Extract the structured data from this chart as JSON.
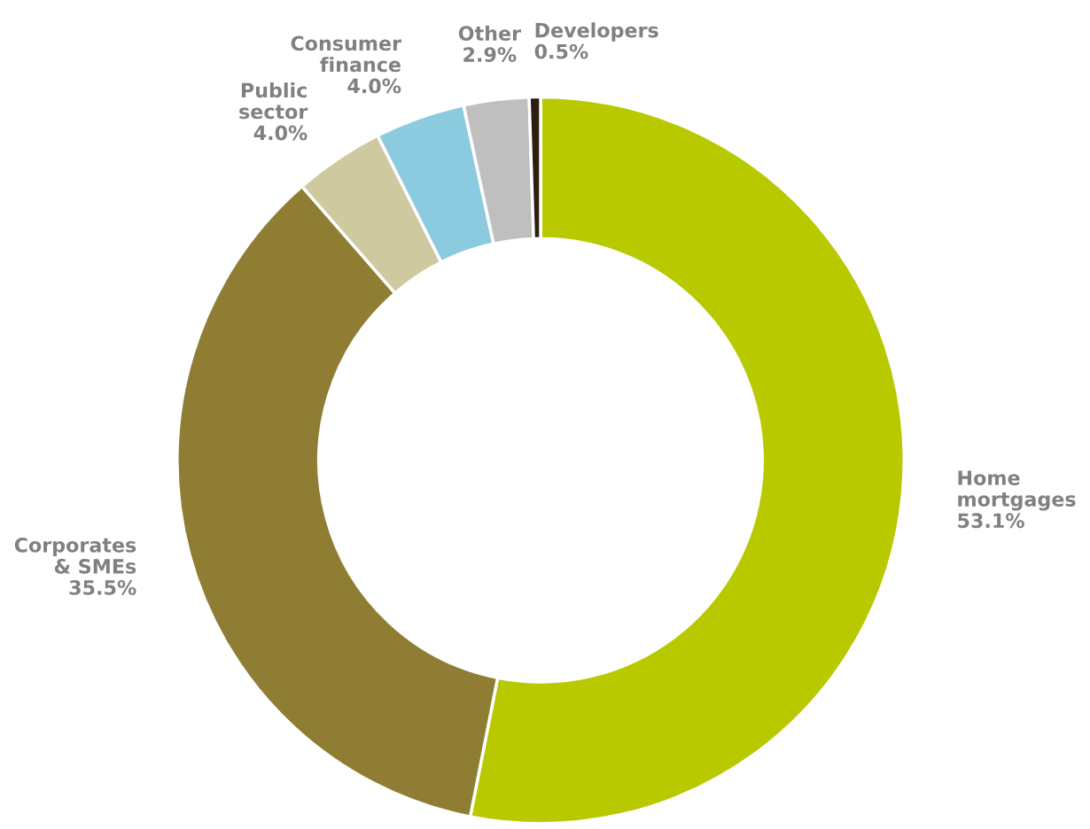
{
  "chart_data": {
    "type": "donut",
    "categories": [
      "Home\nmortgages",
      "Corporates\n& SMEs",
      "Public\nsector",
      "Consumer\nfinance",
      "Other",
      "Developers"
    ],
    "values": [
      53.1,
      35.5,
      4.0,
      4.0,
      2.9,
      0.5
    ],
    "value_labels": [
      "53.1%",
      "35.5%",
      "4.0%",
      "4.0%",
      "2.9%",
      "0.5%"
    ],
    "colors": [
      "#b9c900",
      "#8f7d33",
      "#cfc9a0",
      "#8ccbdf",
      "#bfbfbf",
      "#2b1d10"
    ]
  }
}
